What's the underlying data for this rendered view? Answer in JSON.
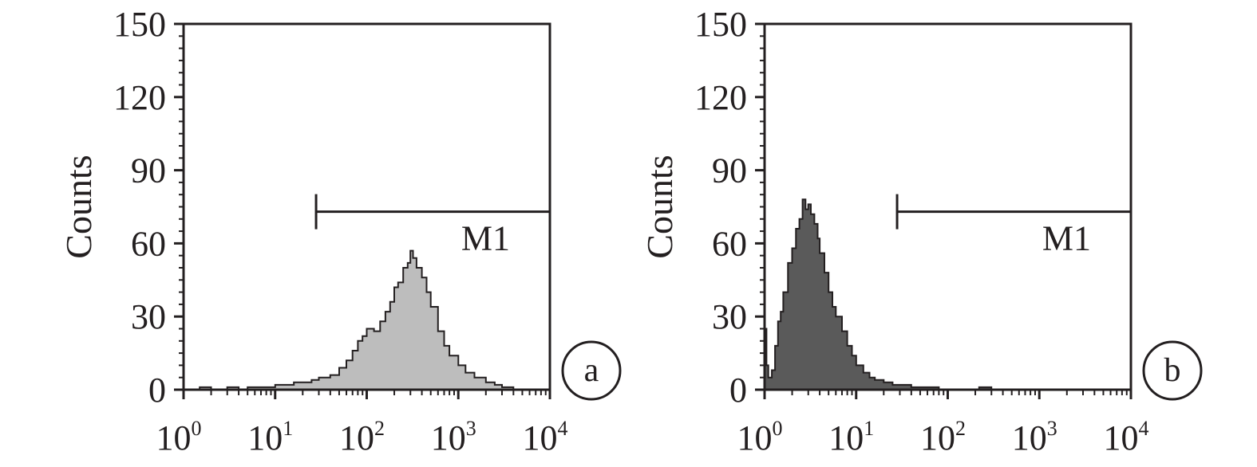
{
  "figure": {
    "colors": {
      "axis": "#231f20",
      "panel_a_fill": "#bdbdbd",
      "panel_b_fill": "#5a5a5a"
    }
  },
  "chart_data": [
    {
      "type": "area",
      "panel_label": "a",
      "ylabel": "Counts",
      "xscale": "log",
      "xlim": [
        1,
        10000
      ],
      "ylim": [
        0,
        150
      ],
      "yticks": [
        "0",
        "30",
        "60",
        "90",
        "120",
        "150"
      ],
      "xticks": [
        {
          "base": "10",
          "exp": "0"
        },
        {
          "base": "10",
          "exp": "1"
        },
        {
          "base": "10",
          "exp": "2"
        },
        {
          "base": "10",
          "exp": "3"
        },
        {
          "base": "10",
          "exp": "4"
        }
      ],
      "gate": {
        "label": "M1",
        "x_start": 28,
        "x_end": 10000,
        "y": 73
      },
      "fill_color": "#bdbdbd",
      "x": [
        1,
        1.5,
        2,
        3,
        4,
        5,
        6,
        8,
        10,
        13,
        16,
        20,
        25,
        30,
        40,
        50,
        60,
        70,
        80,
        90,
        100,
        120,
        140,
        160,
        180,
        200,
        220,
        250,
        280,
        300,
        320,
        350,
        400,
        450,
        500,
        600,
        700,
        800,
        1000,
        1200,
        1500,
        2000,
        2500,
        3000,
        4000,
        5000,
        10000
      ],
      "y": [
        0,
        1,
        0,
        1,
        0,
        1,
        1,
        1,
        2,
        2,
        3,
        3,
        4,
        5,
        6,
        9,
        12,
        16,
        20,
        22,
        25,
        24,
        28,
        32,
        36,
        42,
        44,
        50,
        52,
        57,
        54,
        50,
        46,
        40,
        34,
        24,
        18,
        14,
        10,
        7,
        5,
        3,
        2,
        1,
        0,
        0,
        0
      ]
    },
    {
      "type": "area",
      "panel_label": "b",
      "ylabel": "Counts",
      "xscale": "log",
      "xlim": [
        1,
        10000
      ],
      "ylim": [
        0,
        150
      ],
      "yticks": [
        "0",
        "30",
        "60",
        "90",
        "120",
        "150"
      ],
      "xticks": [
        {
          "base": "10",
          "exp": "0"
        },
        {
          "base": "10",
          "exp": "1"
        },
        {
          "base": "10",
          "exp": "2"
        },
        {
          "base": "10",
          "exp": "3"
        },
        {
          "base": "10",
          "exp": "4"
        }
      ],
      "gate": {
        "label": "M1",
        "x_start": 28,
        "x_end": 10000,
        "y": 73
      },
      "fill_color": "#5a5a5a",
      "x": [
        1,
        1.05,
        1.1,
        1.2,
        1.3,
        1.4,
        1.5,
        1.6,
        1.8,
        2,
        2.2,
        2.4,
        2.6,
        2.8,
        3,
        3.2,
        3.5,
        3.8,
        4,
        4.5,
        5,
        5.5,
        6,
        7,
        8,
        9,
        10,
        12,
        14,
        16,
        20,
        25,
        30,
        40,
        50,
        60,
        80,
        100,
        150,
        200,
        220,
        300,
        500,
        1000,
        10000
      ],
      "y": [
        25,
        10,
        5,
        8,
        18,
        28,
        32,
        40,
        52,
        58,
        66,
        70,
        78,
        74,
        76,
        72,
        68,
        62,
        56,
        48,
        40,
        34,
        30,
        24,
        18,
        14,
        10,
        7,
        5,
        4,
        3,
        2,
        2,
        1,
        1,
        1,
        0,
        0,
        0,
        0,
        1,
        0,
        0,
        0,
        0
      ]
    }
  ]
}
